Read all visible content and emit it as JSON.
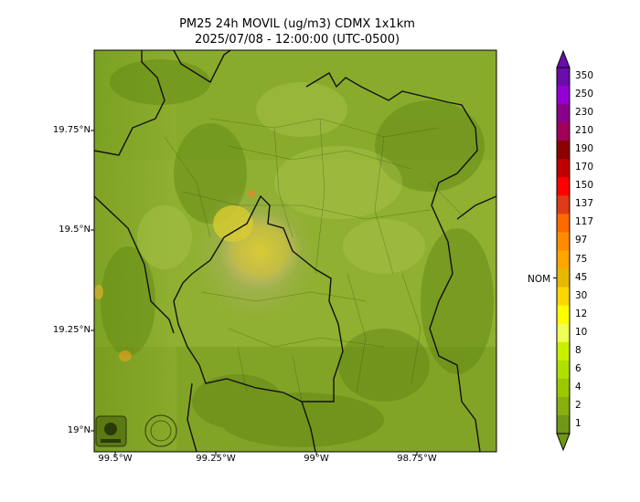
{
  "title": {
    "line1": "PM25 24h MOVIL (ug/m3) CDMX 1x1km",
    "line2": "2025/07/08 - 12:00:00 (UTC-0500)"
  },
  "axes": {
    "lat_ticks": [
      "19.75°N",
      "19.5°N",
      "19.25°N",
      "19°N"
    ],
    "lon_ticks": [
      "99.5°W",
      "99.25°W",
      "99°W",
      "98.75°W"
    ]
  },
  "colorbar": {
    "labels": [
      "350",
      "250",
      "230",
      "210",
      "190",
      "170",
      "150",
      "137",
      "117",
      "97",
      "75",
      "45",
      "30",
      "12",
      "10",
      "8",
      "6",
      "4",
      "2",
      "1"
    ],
    "colors": [
      "#6a0dad",
      "#9400d3",
      "#8b008b",
      "#a0005a",
      "#8b0000",
      "#c00000",
      "#ff0000",
      "#e03a1a",
      "#ff6a00",
      "#ff8c00",
      "#ffa500",
      "#e6b800",
      "#ffd700",
      "#ffff00",
      "#eeff55",
      "#c8f000",
      "#b0e000",
      "#9cc800",
      "#88b010",
      "#6f9818"
    ],
    "nom_label": "NOM",
    "nom_value": 45
  },
  "map": {
    "base_color": "#8fb030",
    "hotspot_color": "#d4c830"
  }
}
